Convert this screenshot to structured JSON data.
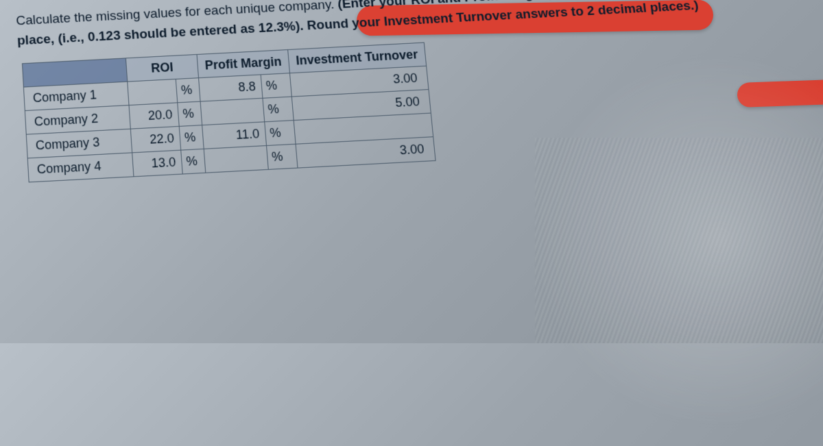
{
  "instruction_prefix": "Calculate the missing values for each unique company. ",
  "instruction_bold": "(Enter your ROI and Profit Margin percentage answers to one decimal place, (i.e., 0.123 should be entered as 12.3%). Round your Investment Turnover answers to 2 decimal places.)",
  "table": {
    "headers": {
      "roi": "ROI",
      "profit_margin": "Profit Margin",
      "turnover": "Investment Turnover"
    },
    "rows": [
      {
        "label": "Company 1",
        "roi": "",
        "roi_unit": "%",
        "pm": "8.8",
        "pm_unit": "%",
        "turn": "3.00"
      },
      {
        "label": "Company 2",
        "roi": "20.0",
        "roi_unit": "%",
        "pm": "",
        "pm_unit": "%",
        "turn": "5.00"
      },
      {
        "label": "Company 3",
        "roi": "22.0",
        "roi_unit": "%",
        "pm": "11.0",
        "pm_unit": "%",
        "turn": ""
      },
      {
        "label": "Company 4",
        "roi": "13.0",
        "roi_unit": "%",
        "pm": "",
        "pm_unit": "%",
        "turn": "3.00"
      }
    ]
  },
  "style": {
    "header_bg": "rgba(130,150,180,0.25)",
    "corner_bg": "rgba(60,90,140,0.55)",
    "border_color": "#4a5a6a",
    "text_color": "#0a1a2a",
    "highlighter_color": "#e03828"
  }
}
